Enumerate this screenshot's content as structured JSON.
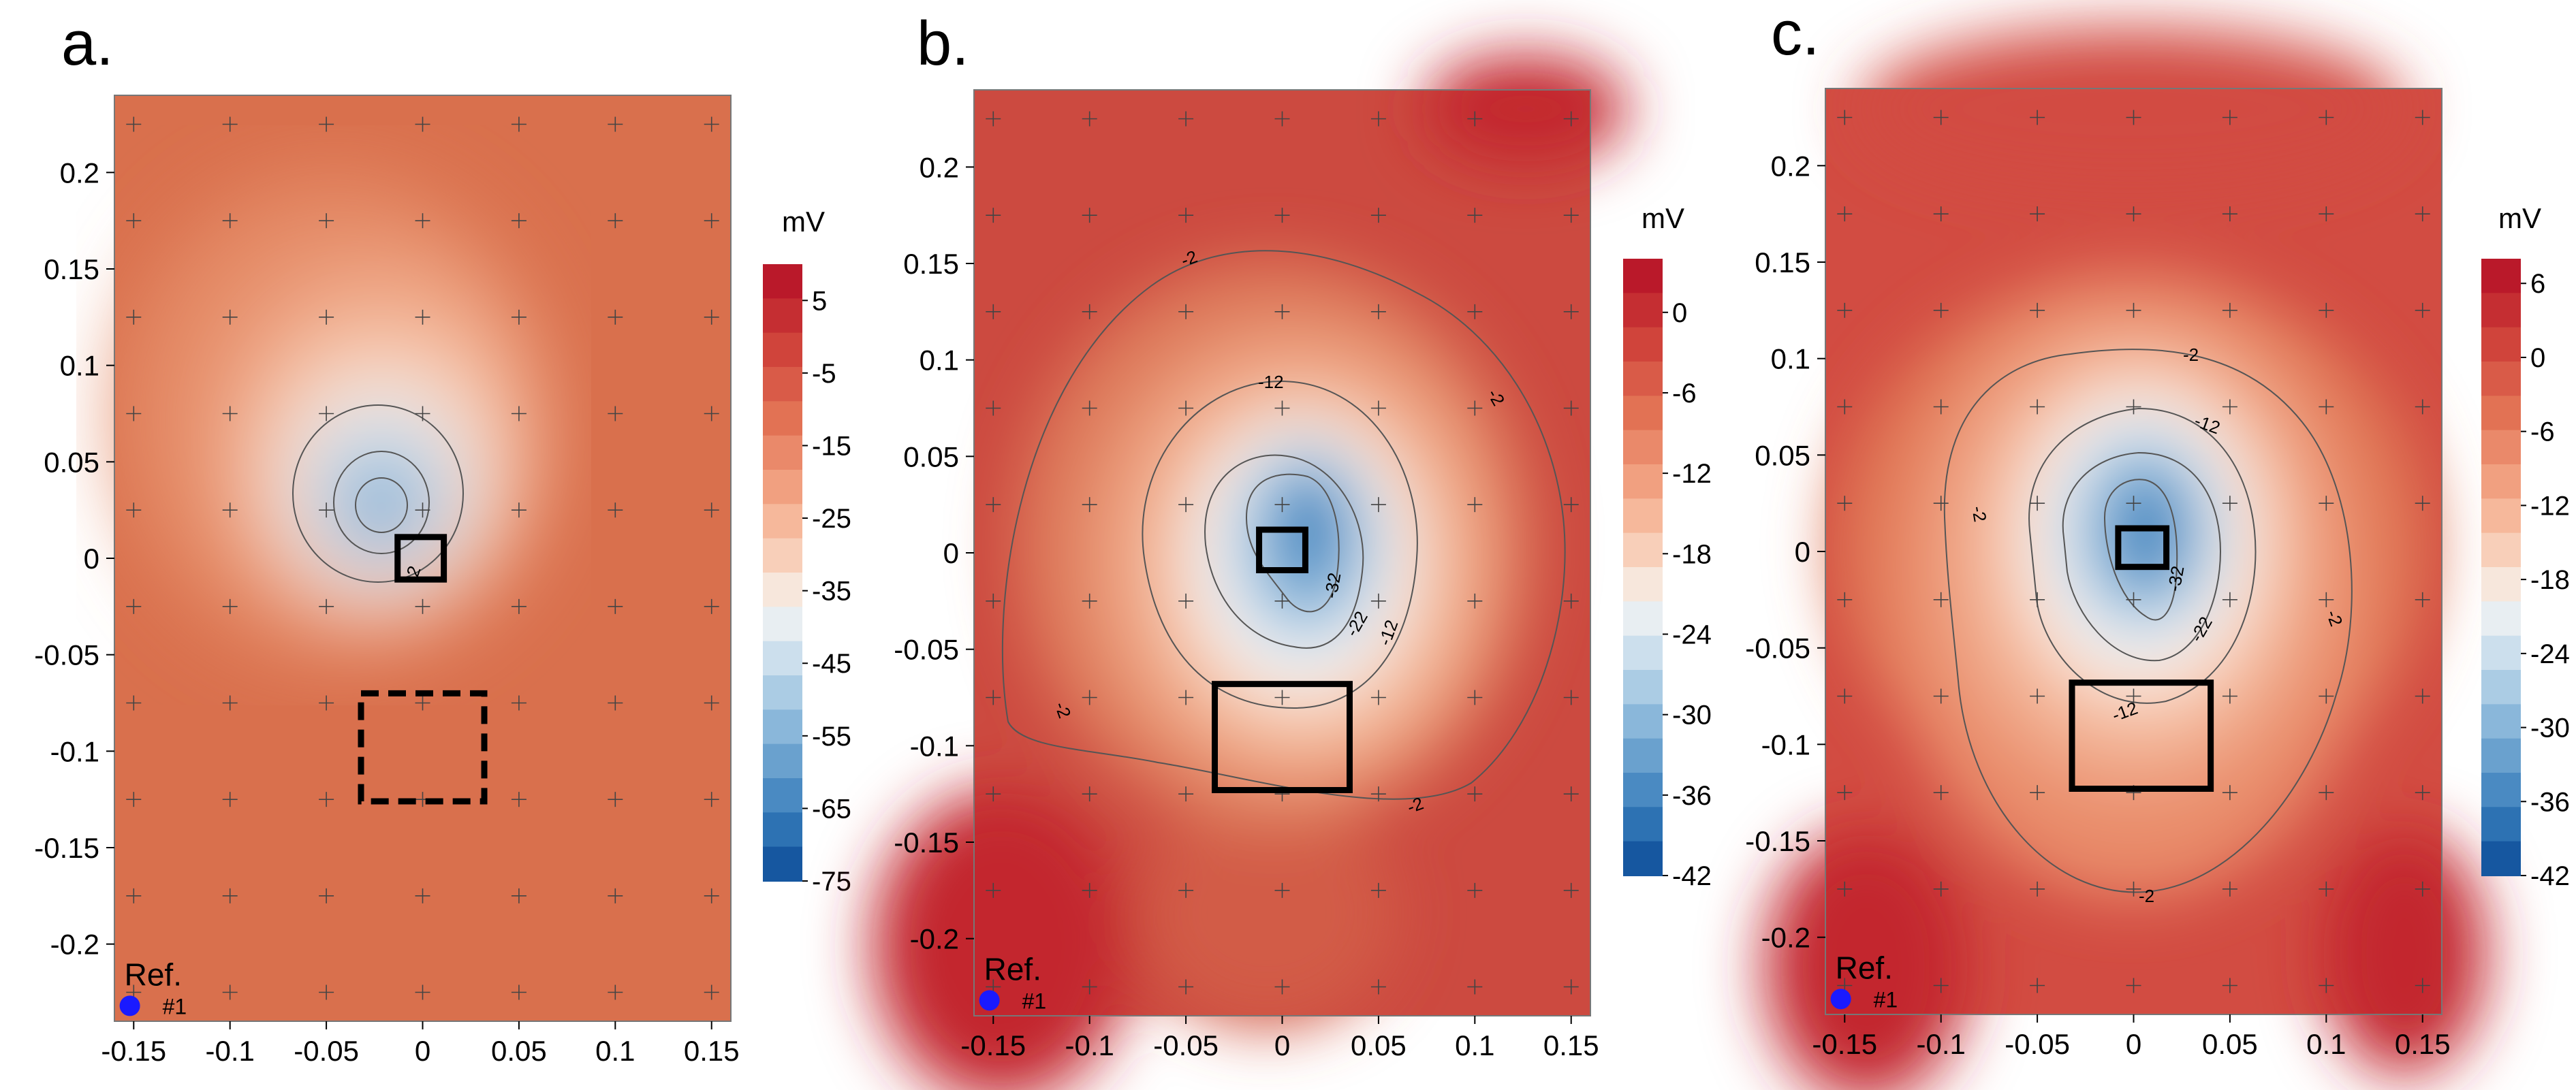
{
  "chart_data": [
    {
      "type": "heatmap",
      "panel_label": "a.",
      "units": "mV",
      "x_ticks": [
        "-0.15",
        "-0.1",
        "-0.05",
        "0",
        "0.05",
        "0.1",
        "0.15"
      ],
      "x_tick_values": [
        -0.15,
        -0.1,
        -0.05,
        0,
        0.05,
        0.1,
        0.15
      ],
      "y_ticks": [
        "0.2",
        "0.15",
        "0.1",
        "0.05",
        "0",
        "-0.05",
        "-0.1",
        "-0.15",
        "-0.2"
      ],
      "y_tick_values": [
        0.2,
        0.15,
        0.1,
        0.05,
        0,
        -0.05,
        -0.1,
        -0.15,
        -0.2
      ],
      "xlim": [
        -0.16,
        0.16
      ],
      "ylim": [
        -0.24,
        0.24
      ],
      "colorbar_labels": [
        "5",
        "-5",
        "-15",
        "-25",
        "-35",
        "-45",
        "-55",
        "-65",
        "-75"
      ],
      "colorbar_range": [
        10,
        -75
      ],
      "contour_labels": [
        "-2"
      ],
      "field": {
        "base": -4,
        "min": -72,
        "center": [
          -0.022,
          0.025
        ]
      },
      "electrodes": {
        "x": [
          -0.15,
          -0.1,
          -0.05,
          0,
          0.05,
          0.1,
          0.15
        ],
        "y": [
          0.225,
          0.175,
          0.125,
          0.075,
          0.025,
          -0.025,
          -0.075,
          -0.125,
          -0.175,
          -0.225
        ]
      },
      "boxes": [
        {
          "x": [
            -0.013,
            0.011
          ],
          "y": [
            -0.011,
            0.011
          ],
          "style": "solid"
        },
        {
          "x": [
            -0.032,
            0.032
          ],
          "y": [
            -0.126,
            -0.07
          ],
          "style": "dashed"
        }
      ],
      "reference": {
        "label": "Ref.",
        "electrode": "#1",
        "x": -0.152,
        "y": -0.232
      }
    },
    {
      "type": "heatmap",
      "panel_label": "b.",
      "units": "mV",
      "x_ticks": [
        "-0.15",
        "-0.1",
        "-0.05",
        "0",
        "0.05",
        "0.1",
        "0.15"
      ],
      "x_tick_values": [
        -0.15,
        -0.1,
        -0.05,
        0,
        0.05,
        0.1,
        0.15
      ],
      "y_ticks": [
        "0.2",
        "0.15",
        "0.1",
        "0.05",
        "0",
        "-0.05",
        "-0.1",
        "-0.15",
        "-0.2"
      ],
      "y_tick_values": [
        0.2,
        0.15,
        0.1,
        0.05,
        0,
        -0.05,
        -0.1,
        -0.15,
        -0.2
      ],
      "xlim": [
        -0.16,
        0.16
      ],
      "ylim": [
        -0.24,
        0.24
      ],
      "colorbar_labels": [
        "0",
        "-6",
        "-12",
        "-18",
        "-24",
        "-30",
        "-36",
        "-42"
      ],
      "colorbar_range": [
        4,
        -42
      ],
      "contour_labels": [
        "-2",
        "-2",
        "-2",
        "-2",
        "-12",
        "-12",
        "-22",
        "-32"
      ],
      "field": {
        "base": 1,
        "min": -40,
        "center": [
          0.012,
          0.012
        ]
      },
      "electrodes": {
        "x": [
          -0.15,
          -0.1,
          -0.05,
          0,
          0.05,
          0.1,
          0.15
        ],
        "y": [
          0.225,
          0.175,
          0.125,
          0.075,
          0.025,
          -0.025,
          -0.075,
          -0.125,
          -0.175,
          -0.225
        ]
      },
      "boxes": [
        {
          "x": [
            -0.012,
            0.012
          ],
          "y": [
            -0.009,
            0.012
          ],
          "style": "solid"
        },
        {
          "x": [
            -0.035,
            0.035
          ],
          "y": [
            -0.123,
            -0.068
          ],
          "style": "solid"
        }
      ],
      "reference": {
        "label": "Ref.",
        "electrode": "#1",
        "x": -0.152,
        "y": -0.232
      }
    },
    {
      "type": "heatmap",
      "panel_label": "c.",
      "units": "mV",
      "x_ticks": [
        "-0.15",
        "-0.1",
        "-0.05",
        "0",
        "0.05",
        "0.1",
        "0.15"
      ],
      "x_tick_values": [
        -0.15,
        -0.1,
        -0.05,
        0,
        0.05,
        0.1,
        0.15
      ],
      "y_ticks": [
        "0.2",
        "0.15",
        "0.1",
        "0.05",
        "0",
        "-0.05",
        "-0.1",
        "-0.15",
        "-0.2"
      ],
      "y_tick_values": [
        0.2,
        0.15,
        0.1,
        0.05,
        0,
        -0.05,
        -0.1,
        -0.15,
        -0.2
      ],
      "xlim": [
        -0.16,
        0.16
      ],
      "ylim": [
        -0.24,
        0.24
      ],
      "colorbar_labels": [
        "6",
        "0",
        "-6",
        "-12",
        "-18",
        "-24",
        "-30",
        "-36",
        "-42"
      ],
      "colorbar_range": [
        8,
        -42
      ],
      "contour_labels": [
        "-2",
        "-2",
        "-2",
        "-2",
        "-12",
        "-12",
        "-22",
        "-32"
      ],
      "field": {
        "base": 1,
        "min": -40,
        "center": [
          0.012,
          0.012
        ]
      },
      "electrodes": {
        "x": [
          -0.15,
          -0.1,
          -0.05,
          0,
          0.05,
          0.1,
          0.15
        ],
        "y": [
          0.225,
          0.175,
          0.125,
          0.075,
          0.025,
          -0.025,
          -0.075,
          -0.125,
          -0.175,
          -0.225
        ]
      },
      "boxes": [
        {
          "x": [
            -0.008,
            0.017
          ],
          "y": [
            -0.008,
            0.012
          ],
          "style": "solid"
        },
        {
          "x": [
            -0.032,
            0.04
          ],
          "y": [
            -0.123,
            -0.068
          ],
          "style": "solid"
        }
      ],
      "reference": {
        "label": "Ref.",
        "electrode": "#1",
        "x": -0.152,
        "y": -0.232
      }
    }
  ]
}
